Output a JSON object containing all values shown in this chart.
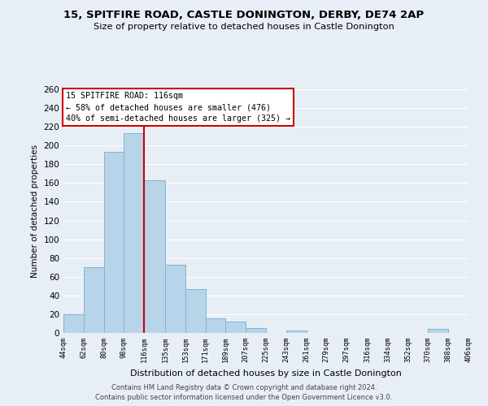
{
  "title": "15, SPITFIRE ROAD, CASTLE DONINGTON, DERBY, DE74 2AP",
  "subtitle": "Size of property relative to detached houses in Castle Donington",
  "xlabel": "Distribution of detached houses by size in Castle Donington",
  "ylabel": "Number of detached properties",
  "bar_edges": [
    44,
    62,
    80,
    98,
    116,
    135,
    153,
    171,
    189,
    207,
    225,
    243,
    261,
    279,
    297,
    316,
    334,
    352,
    370,
    388,
    406
  ],
  "bar_heights": [
    20,
    70,
    193,
    213,
    163,
    73,
    47,
    16,
    12,
    5,
    0,
    3,
    0,
    0,
    0,
    0,
    0,
    0,
    4,
    0
  ],
  "bar_color": "#b8d4e8",
  "bar_edgecolor": "#7ab6d8",
  "redline_x": 116,
  "annotation_title": "15 SPITFIRE ROAD: 116sqm",
  "annotation_line1": "← 58% of detached houses are smaller (476)",
  "annotation_line2": "40% of semi-detached houses are larger (325) →",
  "annotation_box_facecolor": "#ffffff",
  "annotation_box_edgecolor": "#cc0000",
  "redline_color": "#cc0000",
  "ylim": [
    0,
    260
  ],
  "yticks": [
    0,
    20,
    40,
    60,
    80,
    100,
    120,
    140,
    160,
    180,
    200,
    220,
    240,
    260
  ],
  "footer1": "Contains HM Land Registry data © Crown copyright and database right 2024.",
  "footer2": "Contains public sector information licensed under the Open Government Licence v3.0.",
  "bg_color": "#e8eef5",
  "plot_bg_color": "#e8eef5",
  "grid_color": "#ffffff"
}
